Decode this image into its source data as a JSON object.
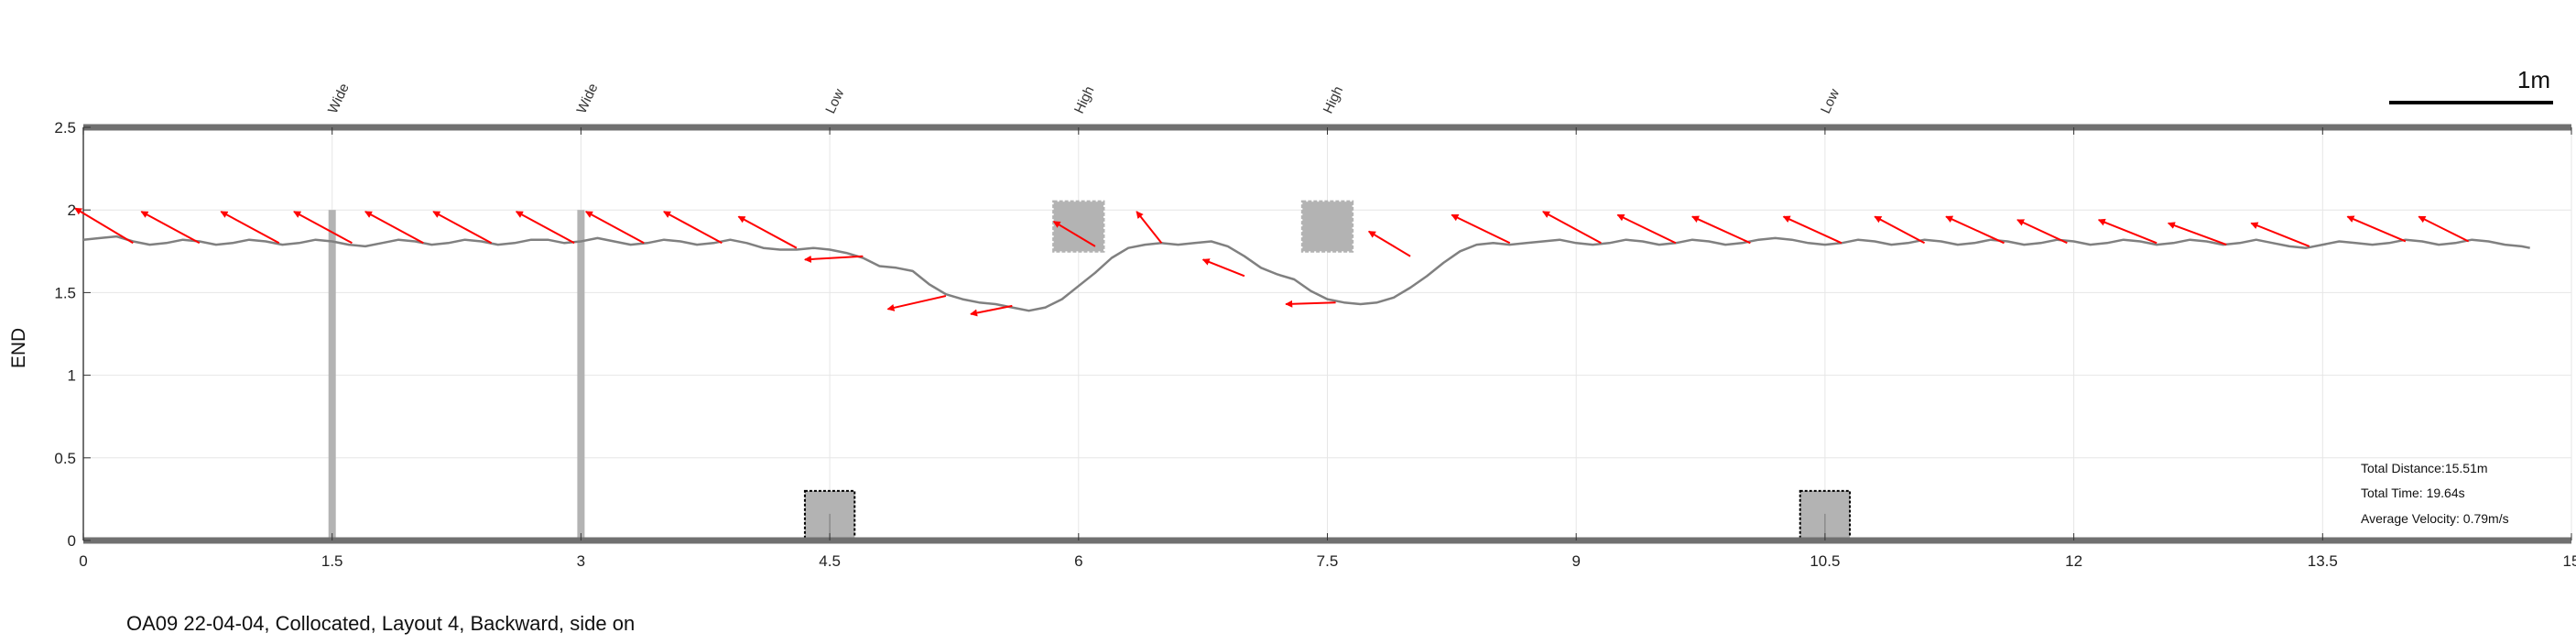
{
  "caption": "OA09 22-04-04, Collocated, Layout 4, Backward, side on",
  "scale_bar_label": "1m",
  "stats": {
    "distance": "Total Distance:15.51m",
    "time": "Total Time: 19.64s",
    "velocity": "Average Velocity: 0.79m/s"
  },
  "colors": {
    "trajectory": "#808080",
    "arrows": "#ff0000",
    "obstacles": "#b3b3b3",
    "frame": "#707070",
    "grid": "#e6e6e6"
  },
  "chart_data": {
    "type": "line",
    "title": "",
    "xlabel": "",
    "ylabel": "END",
    "xlim": [
      0,
      15
    ],
    "ylim": [
      0,
      2.5
    ],
    "x_ticks": [
      0,
      1.5,
      3,
      4.5,
      6,
      7.5,
      9,
      10.5,
      12,
      13.5,
      15
    ],
    "x_tick_labels": [
      "0",
      "1.5",
      "3",
      "4.5",
      "6",
      "7.5",
      "9",
      "10.5",
      "12",
      "13.5",
      "15"
    ],
    "y_ticks": [
      0,
      0.5,
      1,
      1.5,
      2,
      2.5
    ],
    "y_tick_labels": [
      "0",
      "0.5",
      "1",
      "1.5",
      "2",
      "2.5"
    ],
    "grid": true,
    "obstacle_labels": [
      {
        "x": 1.5,
        "text": "Wide"
      },
      {
        "x": 3,
        "text": "Wide"
      },
      {
        "x": 4.5,
        "text": "Low"
      },
      {
        "x": 6,
        "text": "High"
      },
      {
        "x": 7.5,
        "text": "High"
      },
      {
        "x": 10.5,
        "text": "Low"
      }
    ],
    "obstacles": [
      {
        "kind": "wide",
        "x": 1.5,
        "y0": 0,
        "y1": 2.0
      },
      {
        "kind": "wide",
        "x": 3,
        "y0": 0,
        "y1": 2.0
      },
      {
        "kind": "low",
        "x0": 4.35,
        "x1": 4.65,
        "y0": 0,
        "y1": 0.3
      },
      {
        "kind": "high",
        "x0": 5.85,
        "x1": 6.15,
        "y0": 1.75,
        "y1": 2.05
      },
      {
        "kind": "high",
        "x0": 7.35,
        "x1": 7.65,
        "y0": 1.75,
        "y1": 2.05
      },
      {
        "kind": "low",
        "x0": 10.35,
        "x1": 10.65,
        "y0": 0,
        "y1": 0.3
      }
    ],
    "series": [
      {
        "x": [
          0,
          0.1,
          0.2,
          0.3,
          0.4,
          0.5,
          0.6,
          0.7,
          0.8,
          0.9,
          1.0,
          1.1,
          1.2,
          1.3,
          1.4,
          1.5,
          1.6,
          1.7,
          1.8,
          1.9,
          2.0,
          2.1,
          2.2,
          2.3,
          2.4,
          2.5,
          2.6,
          2.7,
          2.8,
          2.9,
          3.0,
          3.1,
          3.2,
          3.3,
          3.4,
          3.5,
          3.6,
          3.7,
          3.8,
          3.9,
          4.0,
          4.1,
          4.2,
          4.3,
          4.4,
          4.5,
          4.6,
          4.7,
          4.8,
          4.9,
          5.0,
          5.1,
          5.2,
          5.3,
          5.4,
          5.5,
          5.6,
          5.7,
          5.8,
          5.9,
          6.0,
          6.1,
          6.2,
          6.3,
          6.4,
          6.5,
          6.6,
          6.7,
          6.8,
          6.9,
          7.0,
          7.1,
          7.2,
          7.3,
          7.4,
          7.5,
          7.6,
          7.7,
          7.8,
          7.9,
          8.0,
          8.1,
          8.2,
          8.3,
          8.4,
          8.5,
          8.6,
          8.7,
          8.8,
          8.9,
          9.0,
          9.1,
          9.2,
          9.3,
          9.4,
          9.5,
          9.6,
          9.7,
          9.8,
          9.9,
          10.0,
          10.1,
          10.2,
          10.3,
          10.4,
          10.5,
          10.6,
          10.7,
          10.8,
          10.9,
          11.0,
          11.1,
          11.2,
          11.3,
          11.4,
          11.5,
          11.6,
          11.7,
          11.8,
          11.9,
          12.0,
          12.1,
          12.2,
          12.3,
          12.4,
          12.5,
          12.6,
          12.7,
          12.8,
          12.9,
          13.0,
          13.1,
          13.2,
          13.3,
          13.4,
          13.5,
          13.6,
          13.7,
          13.8,
          13.9,
          14.0,
          14.1,
          14.2,
          14.3,
          14.4,
          14.5,
          14.6,
          14.7,
          14.75
        ],
        "y": [
          1.82,
          1.83,
          1.84,
          1.81,
          1.79,
          1.8,
          1.82,
          1.81,
          1.79,
          1.8,
          1.82,
          1.81,
          1.79,
          1.8,
          1.82,
          1.81,
          1.79,
          1.78,
          1.8,
          1.82,
          1.81,
          1.79,
          1.8,
          1.82,
          1.81,
          1.79,
          1.8,
          1.82,
          1.82,
          1.8,
          1.81,
          1.83,
          1.81,
          1.79,
          1.8,
          1.82,
          1.81,
          1.79,
          1.8,
          1.82,
          1.8,
          1.77,
          1.76,
          1.76,
          1.77,
          1.76,
          1.74,
          1.71,
          1.66,
          1.65,
          1.63,
          1.55,
          1.49,
          1.46,
          1.44,
          1.43,
          1.41,
          1.39,
          1.41,
          1.46,
          1.54,
          1.62,
          1.71,
          1.77,
          1.79,
          1.8,
          1.79,
          1.8,
          1.81,
          1.78,
          1.72,
          1.65,
          1.61,
          1.58,
          1.51,
          1.46,
          1.44,
          1.43,
          1.44,
          1.47,
          1.53,
          1.6,
          1.68,
          1.75,
          1.79,
          1.8,
          1.79,
          1.8,
          1.81,
          1.82,
          1.8,
          1.79,
          1.8,
          1.82,
          1.81,
          1.79,
          1.8,
          1.82,
          1.81,
          1.79,
          1.8,
          1.82,
          1.83,
          1.82,
          1.8,
          1.79,
          1.8,
          1.82,
          1.81,
          1.79,
          1.8,
          1.82,
          1.81,
          1.79,
          1.8,
          1.82,
          1.81,
          1.79,
          1.8,
          1.82,
          1.81,
          1.79,
          1.8,
          1.82,
          1.81,
          1.79,
          1.8,
          1.82,
          1.81,
          1.79,
          1.8,
          1.82,
          1.8,
          1.78,
          1.77,
          1.79,
          1.81,
          1.8,
          1.79,
          1.8,
          1.82,
          1.81,
          1.79,
          1.8,
          1.82,
          1.81,
          1.79,
          1.78,
          1.77
        ]
      }
    ],
    "arrows": [
      {
        "x0": 0.3,
        "y0": 1.8,
        "x1": -0.05,
        "y1": 2.01
      },
      {
        "x0": 0.7,
        "y0": 1.8,
        "x1": 0.35,
        "y1": 1.99
      },
      {
        "x0": 1.18,
        "y0": 1.8,
        "x1": 0.83,
        "y1": 1.99
      },
      {
        "x0": 1.62,
        "y0": 1.8,
        "x1": 1.27,
        "y1": 1.99
      },
      {
        "x0": 2.05,
        "y0": 1.8,
        "x1": 1.7,
        "y1": 1.99
      },
      {
        "x0": 2.46,
        "y0": 1.8,
        "x1": 2.11,
        "y1": 1.99
      },
      {
        "x0": 2.96,
        "y0": 1.8,
        "x1": 2.61,
        "y1": 1.99
      },
      {
        "x0": 3.38,
        "y0": 1.8,
        "x1": 3.03,
        "y1": 1.99
      },
      {
        "x0": 3.85,
        "y0": 1.8,
        "x1": 3.5,
        "y1": 1.99
      },
      {
        "x0": 4.3,
        "y0": 1.77,
        "x1": 3.95,
        "y1": 1.96
      },
      {
        "x0": 4.7,
        "y0": 1.72,
        "x1": 4.35,
        "y1": 1.7
      },
      {
        "x0": 5.2,
        "y0": 1.48,
        "x1": 4.85,
        "y1": 1.4
      },
      {
        "x0": 5.6,
        "y0": 1.42,
        "x1": 5.35,
        "y1": 1.37
      },
      {
        "x0": 6.1,
        "y0": 1.78,
        "x1": 5.85,
        "y1": 1.93
      },
      {
        "x0": 6.5,
        "y0": 1.8,
        "x1": 6.35,
        "y1": 1.99
      },
      {
        "x0": 7.0,
        "y0": 1.6,
        "x1": 6.75,
        "y1": 1.7
      },
      {
        "x0": 7.55,
        "y0": 1.44,
        "x1": 7.25,
        "y1": 1.43
      },
      {
        "x0": 8.0,
        "y0": 1.72,
        "x1": 7.75,
        "y1": 1.87
      },
      {
        "x0": 8.6,
        "y0": 1.8,
        "x1": 8.25,
        "y1": 1.97
      },
      {
        "x0": 9.15,
        "y0": 1.8,
        "x1": 8.8,
        "y1": 1.99
      },
      {
        "x0": 9.6,
        "y0": 1.8,
        "x1": 9.25,
        "y1": 1.97
      },
      {
        "x0": 10.05,
        "y0": 1.8,
        "x1": 9.7,
        "y1": 1.96
      },
      {
        "x0": 10.6,
        "y0": 1.8,
        "x1": 10.25,
        "y1": 1.96
      },
      {
        "x0": 11.1,
        "y0": 1.8,
        "x1": 10.8,
        "y1": 1.96
      },
      {
        "x0": 11.58,
        "y0": 1.8,
        "x1": 11.23,
        "y1": 1.96
      },
      {
        "x0": 11.96,
        "y0": 1.8,
        "x1": 11.66,
        "y1": 1.94
      },
      {
        "x0": 12.5,
        "y0": 1.8,
        "x1": 12.15,
        "y1": 1.94
      },
      {
        "x0": 12.92,
        "y0": 1.79,
        "x1": 12.57,
        "y1": 1.92
      },
      {
        "x0": 13.42,
        "y0": 1.78,
        "x1": 13.07,
        "y1": 1.92
      },
      {
        "x0": 14.0,
        "y0": 1.81,
        "x1": 13.65,
        "y1": 1.96
      },
      {
        "x0": 14.38,
        "y0": 1.81,
        "x1": 14.08,
        "y1": 1.96
      }
    ]
  }
}
